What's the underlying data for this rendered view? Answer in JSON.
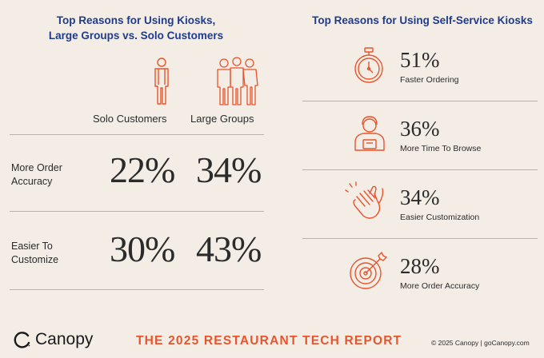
{
  "colors": {
    "accent": "#e8542b",
    "title_blue": "#1f3b8c",
    "background": "#f3ede5"
  },
  "left_panel": {
    "title_line1": "Top Reasons for Using Kiosks,",
    "title_line2": "Large Groups vs. Solo Customers",
    "columns": [
      "Solo Customers",
      "Large Groups"
    ],
    "icons": [
      "single-person-icon",
      "group-of-people-icon"
    ],
    "rows": [
      {
        "label_line1": "More Order",
        "label_line2": "Accuracy",
        "solo": "22%",
        "groups": "34%"
      },
      {
        "label_line1": "Easier To",
        "label_line2": "Customize",
        "solo": "30%",
        "groups": "43%"
      }
    ]
  },
  "right_panel": {
    "title": "Top Reasons for Using Self-Service Kiosks",
    "items": [
      {
        "icon": "stopwatch-icon",
        "value": "51%",
        "label": "Faster Ordering"
      },
      {
        "icon": "person-browsing-icon",
        "value": "36%",
        "label": "More Time To Browse"
      },
      {
        "icon": "clapping-hands-icon",
        "value": "34%",
        "label": "Easier Customization"
      },
      {
        "icon": "target-icon",
        "value": "28%",
        "label": "More Order Accuracy"
      }
    ]
  },
  "footer": {
    "logo_text": "Canopy",
    "report_title": "THE 2025 RESTAURANT TECH REPORT",
    "copyright": "© 2025 Canopy  |  goCanopy.com"
  }
}
